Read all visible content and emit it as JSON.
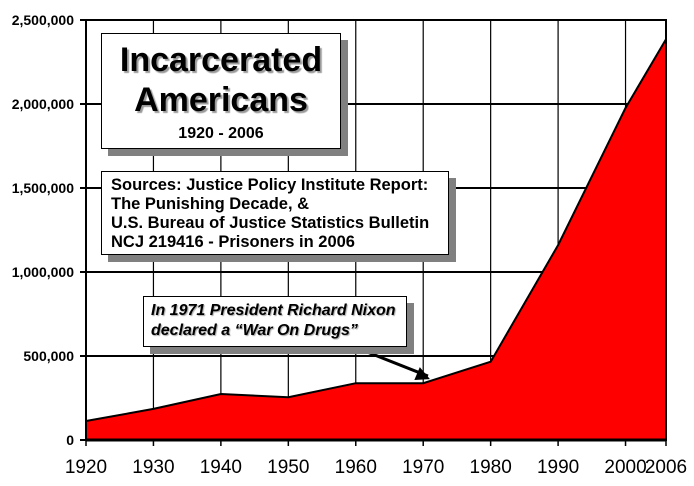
{
  "chart_data": {
    "type": "area",
    "title": "Incarcerated Americans",
    "subtitle": "1920 - 2006",
    "xlabel": "",
    "ylabel": "",
    "categories": [
      "1920",
      "1930",
      "1940",
      "1950",
      "1960",
      "1970",
      "1980",
      "1990",
      "2000",
      "2006"
    ],
    "x": [
      1920,
      1930,
      1940,
      1950,
      1960,
      1970,
      1980,
      1990,
      2000,
      2006
    ],
    "series": [
      {
        "name": "Incarcerated Americans",
        "color": "#FF0000",
        "values": [
          113000,
          185000,
          274000,
          255000,
          338000,
          338000,
          466000,
          1160000,
          1976000,
          2385000
        ]
      }
    ],
    "ylim": [
      0,
      2500000
    ],
    "yticks": [
      0,
      500000,
      1000000,
      1500000,
      2000000,
      2500000
    ],
    "ytick_labels": [
      "0",
      "500,000",
      "1,000,000",
      "1,500,000",
      "2,000,000",
      "2,500,000"
    ],
    "xtick_labels": [
      "1920",
      "1930",
      "1940",
      "1950",
      "1960",
      "1970",
      "1980",
      "1990",
      "2000",
      "2006"
    ],
    "grid": true,
    "legend": "none",
    "annotations": [
      {
        "text": "In 1971 President Richard Nixon declared a “War On Drugs”",
        "arrow_to_year": 1971
      }
    ]
  },
  "title_box": {
    "line1": "Incarcerated",
    "line2": "Americans",
    "subtitle": "1920 - 2006"
  },
  "sources_box": {
    "lines": [
      "Sources: Justice Policy Institute Report:",
      "The Punishing Decade, &",
      "U.S. Bureau of Justice Statistics Bulletin",
      "NCJ 219416 - Prisoners in 2006"
    ]
  },
  "annotation_box": {
    "lines": [
      "In 1971 President Richard Nixon",
      "declared a “War On Drugs”"
    ]
  },
  "colors": {
    "area_fill": "#FF0000",
    "shadow": "#808080",
    "grid": "#000000",
    "background": "#FFFFFF"
  }
}
